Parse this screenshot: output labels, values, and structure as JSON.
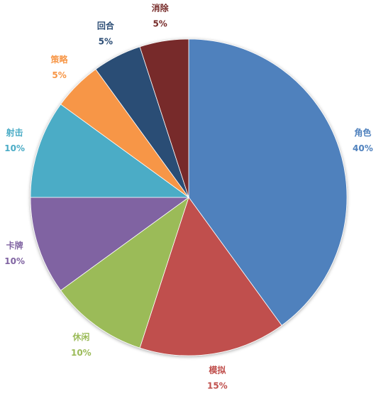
{
  "chart_data": {
    "type": "pie",
    "categories": [
      "角色",
      "模拟",
      "休闲",
      "卡牌",
      "射击",
      "策略",
      "回合",
      "消除"
    ],
    "values": [
      40,
      15,
      10,
      10,
      10,
      5,
      5,
      5
    ],
    "value_labels": [
      "40%",
      "15%",
      "10%",
      "10%",
      "10%",
      "5%",
      "5%",
      "5%"
    ],
    "colors": [
      "#4f81bd",
      "#c0504d",
      "#9bbb59",
      "#8064a2",
      "#4bacc6",
      "#f79646",
      "#2c4d75",
      "#772c2a"
    ]
  }
}
